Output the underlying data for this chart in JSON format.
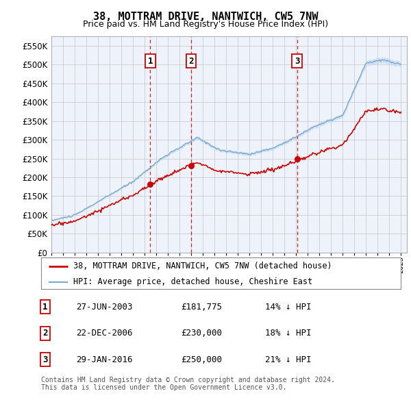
{
  "title": "38, MOTTRAM DRIVE, NANTWICH, CW5 7NW",
  "subtitle": "Price paid vs. HM Land Registry's House Price Index (HPI)",
  "ylim": [
    0,
    575000
  ],
  "yticks": [
    0,
    50000,
    100000,
    150000,
    200000,
    250000,
    300000,
    350000,
    400000,
    450000,
    500000,
    550000
  ],
  "xlim_start": 1995.0,
  "xlim_end": 2025.5,
  "price_paid_color": "#cc0000",
  "hpi_color": "#7aa8d4",
  "hpi_fill_color": "#c8ddf0",
  "grid_color": "#cccccc",
  "vline_color": "#cc0000",
  "marker_color": "#cc0000",
  "transactions": [
    {
      "label": "1",
      "date_num": 2003.49,
      "price": 181775
    },
    {
      "label": "2",
      "date_num": 2006.98,
      "price": 230000
    },
    {
      "label": "3",
      "date_num": 2016.08,
      "price": 250000
    }
  ],
  "legend_entries": [
    {
      "label": "38, MOTTRAM DRIVE, NANTWICH, CW5 7NW (detached house)",
      "color": "#cc0000",
      "lw": 2
    },
    {
      "label": "HPI: Average price, detached house, Cheshire East",
      "color": "#7aa8d4",
      "lw": 1.5
    }
  ],
  "table_rows": [
    {
      "num": "1",
      "date": "27-JUN-2003",
      "price": "£181,775",
      "pct": "14% ↓ HPI"
    },
    {
      "num": "2",
      "date": "22-DEC-2006",
      "price": "£230,000",
      "pct": "18% ↓ HPI"
    },
    {
      "num": "3",
      "date": "29-JAN-2016",
      "price": "£250,000",
      "pct": "21% ↓ HPI"
    }
  ],
  "footnote": "Contains HM Land Registry data © Crown copyright and database right 2024.\nThis data is licensed under the Open Government Licence v3.0.",
  "background_color": "#ffffff",
  "plot_bg_color": "#eef2fa"
}
